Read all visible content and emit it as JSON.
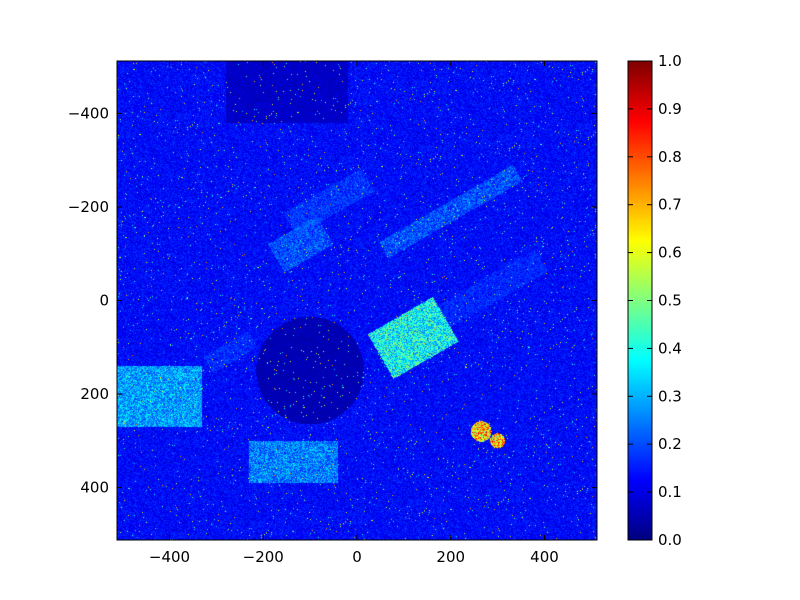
{
  "chart_data": {
    "type": "heatmap",
    "title": "",
    "xlabel": "",
    "ylabel": "",
    "xlim": [
      -512,
      512
    ],
    "ylim": [
      512,
      -512
    ],
    "y_inverted": true,
    "x_ticks": [
      "−400",
      "−200",
      "0",
      "200",
      "400"
    ],
    "x_tick_values": [
      -400,
      -200,
      0,
      200,
      400
    ],
    "y_ticks": [
      "−400",
      "−200",
      "0",
      "200",
      "400"
    ],
    "y_tick_values": [
      -400,
      -200,
      0,
      200,
      400
    ],
    "colormap": "jet",
    "colorbar": {
      "range": [
        0.0,
        1.0
      ],
      "ticks": [
        "0.0",
        "0.1",
        "0.2",
        "0.3",
        "0.4",
        "0.5",
        "0.6",
        "0.7",
        "0.8",
        "0.9",
        "1.0"
      ],
      "tick_values": [
        0.0,
        0.1,
        0.2,
        0.3,
        0.4,
        0.5,
        0.6,
        0.7,
        0.8,
        0.9,
        1.0
      ]
    },
    "content": "noisy intensity map of a rotated urban scene; mostly values 0.05-0.25 with bright building edges up to ~0.8; bright square block near (240, 130); dark circular region near (-100, 150)"
  }
}
